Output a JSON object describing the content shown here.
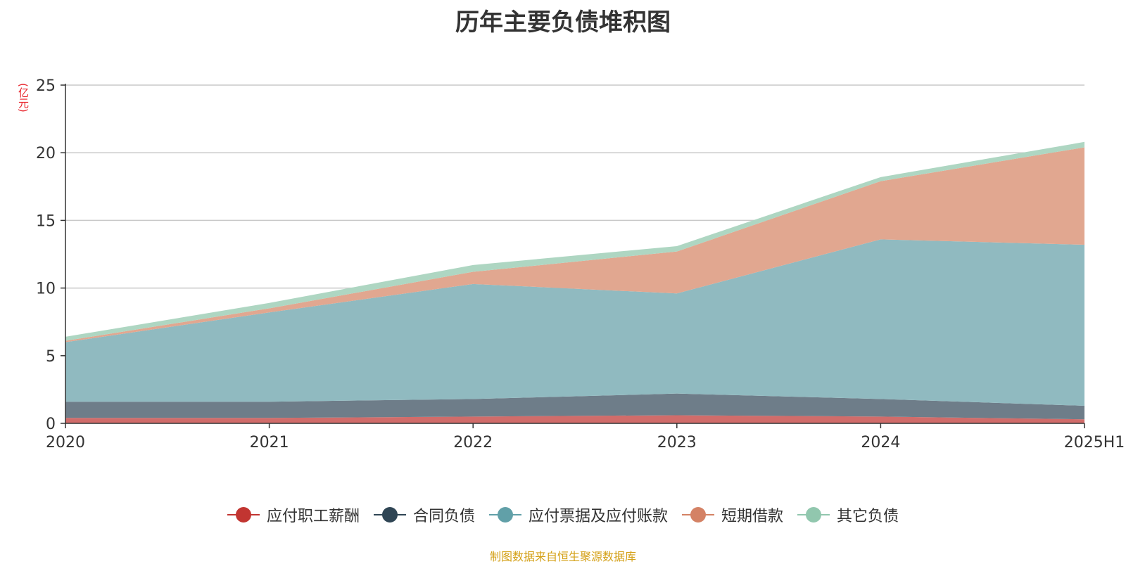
{
  "chart_data": {
    "type": "area",
    "stacked": true,
    "title": "历年主要负债堆积图",
    "unit_label": "(亿元)",
    "categories": [
      "2020",
      "2021",
      "2022",
      "2023",
      "2024",
      "2025H1"
    ],
    "ylim": [
      0,
      25
    ],
    "yticks": [
      0,
      5,
      10,
      15,
      20,
      25
    ],
    "grid": true,
    "legend_position": "bottom",
    "series": [
      {
        "name": "应付职工薪酬",
        "color": "#c23531",
        "fill": "#d16c6a",
        "values": [
          0.4,
          0.4,
          0.5,
          0.6,
          0.5,
          0.3
        ]
      },
      {
        "name": "合同负债",
        "color": "#2f4554",
        "fill": "#6e7d89",
        "values": [
          1.2,
          1.2,
          1.3,
          1.6,
          1.3,
          1.0
        ]
      },
      {
        "name": "应付票据及应付账款",
        "color": "#61a0a8",
        "fill": "#90bac0",
        "values": [
          4.4,
          6.6,
          8.5,
          7.4,
          11.8,
          11.9
        ]
      },
      {
        "name": "短期借款",
        "color": "#d48265",
        "fill": "#e1a790",
        "values": [
          0.1,
          0.3,
          0.9,
          3.1,
          4.3,
          7.2
        ]
      },
      {
        "name": "其它负债",
        "color": "#91c7ae",
        "fill": "#aed6c2",
        "values": [
          0.3,
          0.4,
          0.5,
          0.4,
          0.3,
          0.4
        ]
      }
    ]
  },
  "source_note": "制图数据来自恒生聚源数据库"
}
